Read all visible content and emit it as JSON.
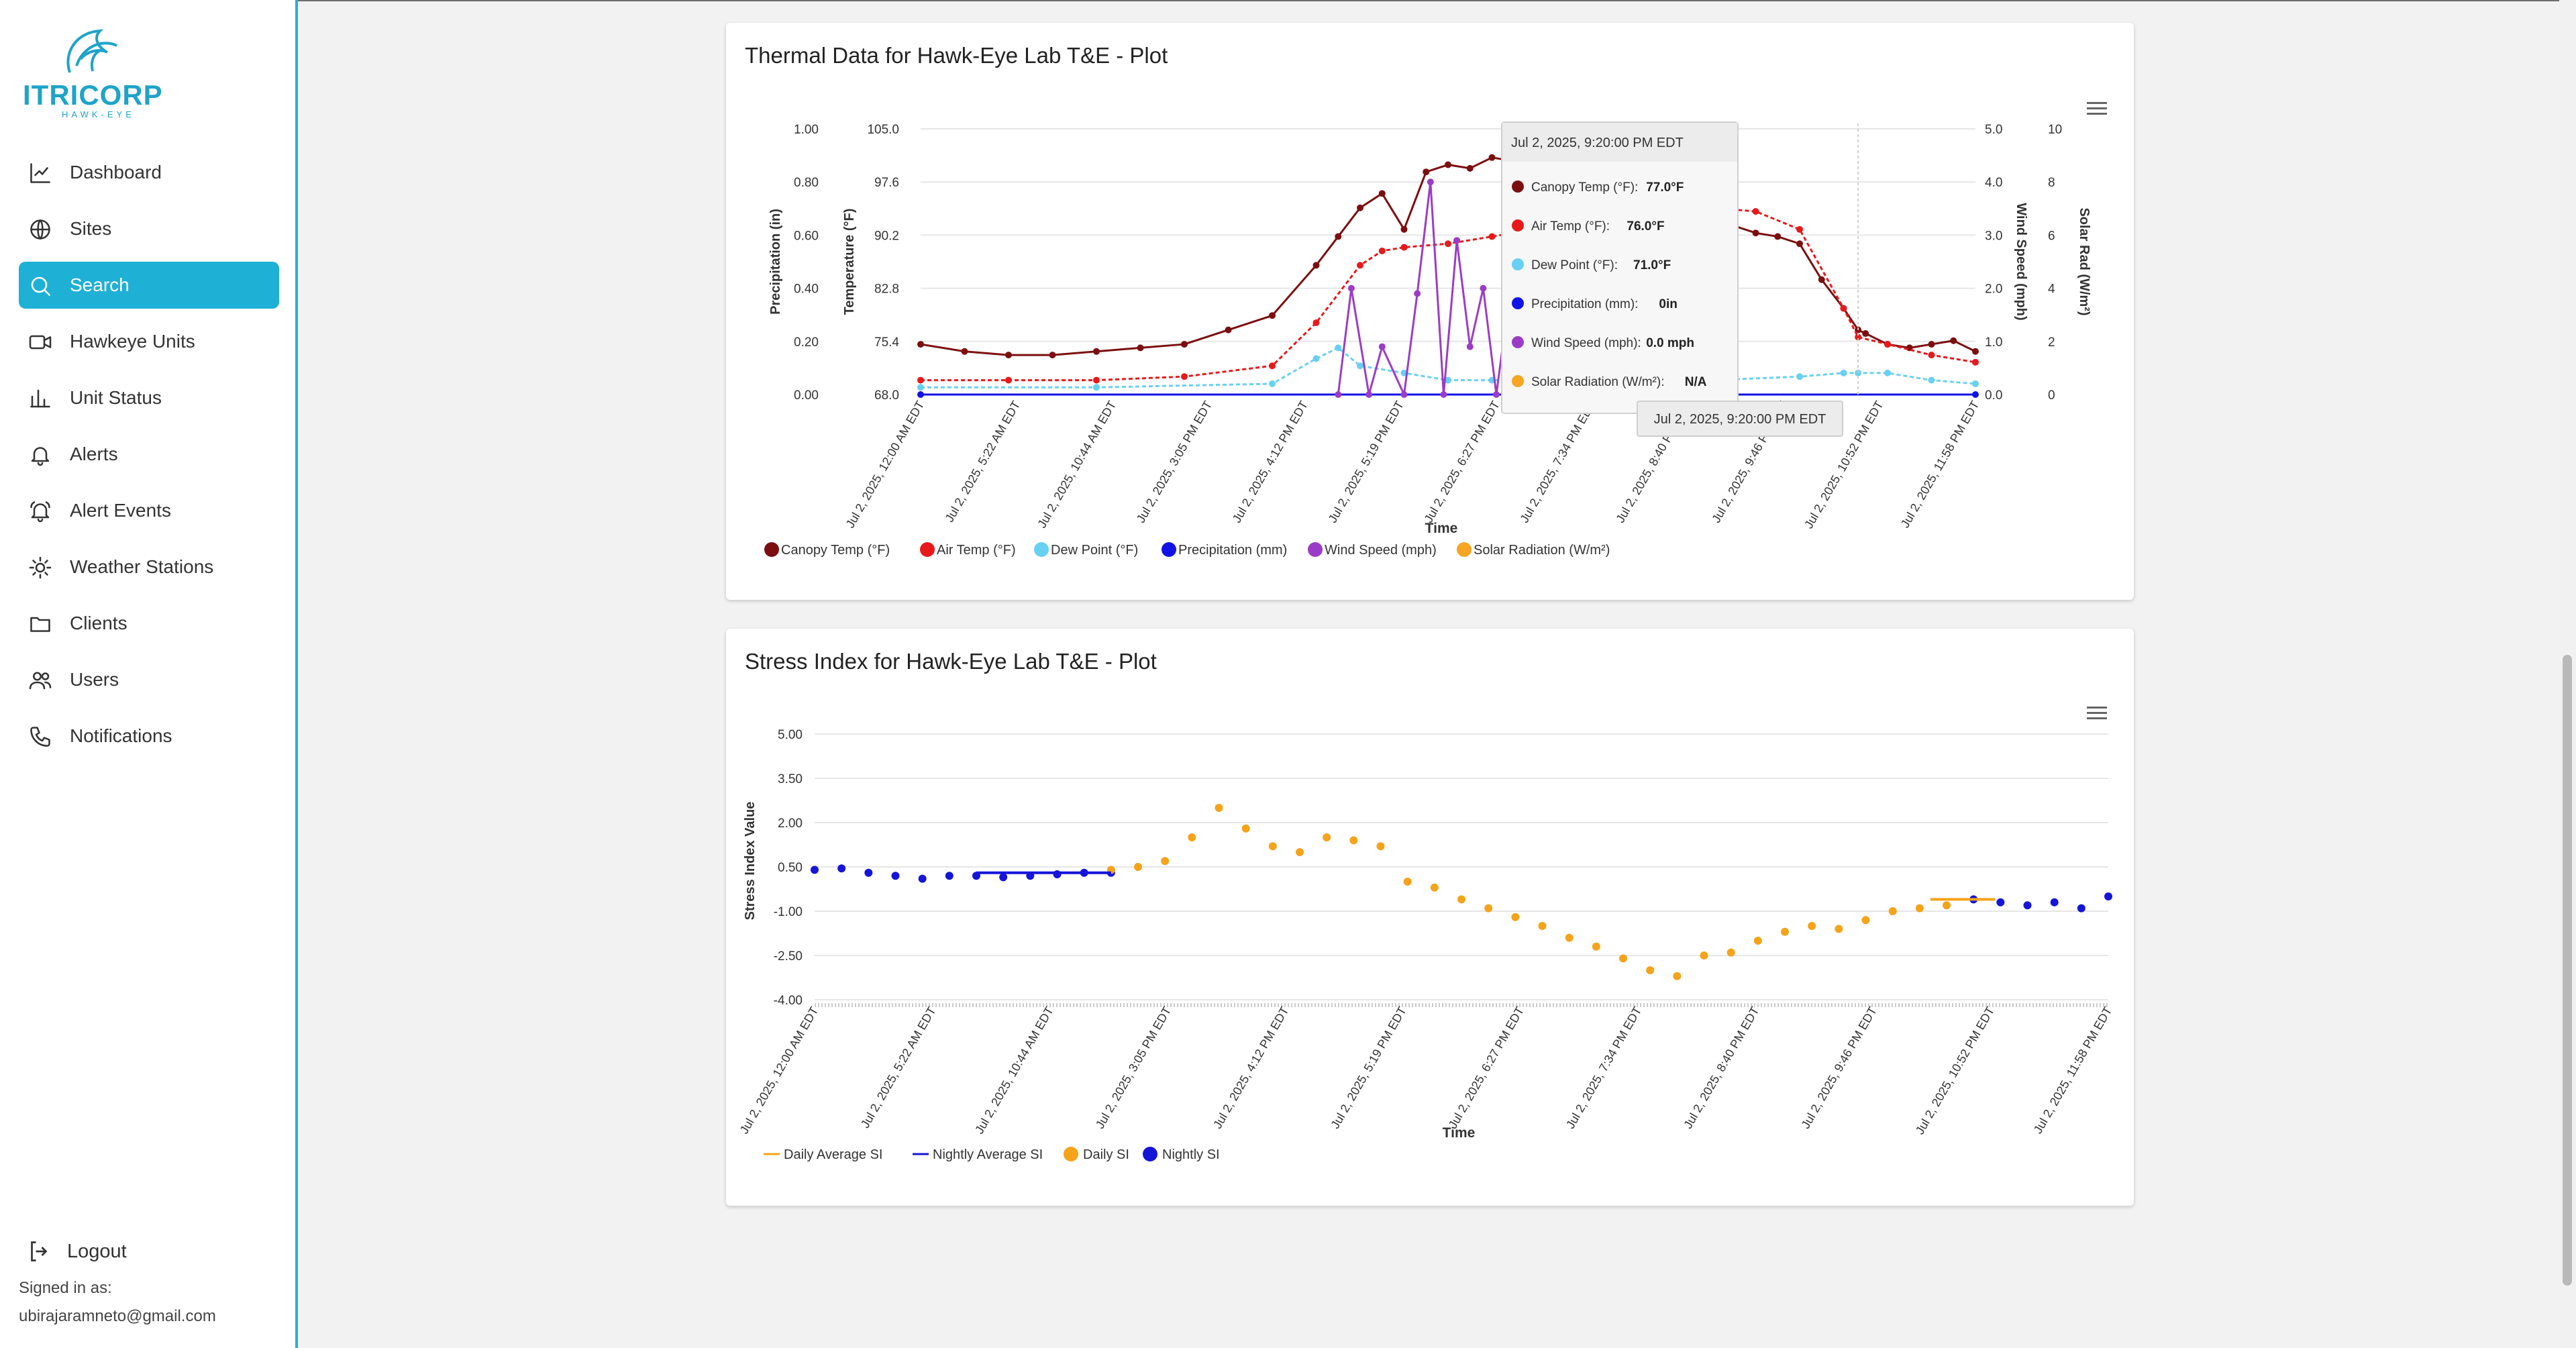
{
  "brand": {
    "name": "ITRICORP",
    "sub": "HAWK-EYE"
  },
  "nav": [
    {
      "label": "Dashboard",
      "icon": "chart-line-icon",
      "active": false
    },
    {
      "label": "Sites",
      "icon": "globe-icon",
      "active": false
    },
    {
      "label": "Search",
      "icon": "search-icon",
      "active": true
    },
    {
      "label": "Hawkeye Units",
      "icon": "video-camera-icon",
      "active": false
    },
    {
      "label": "Unit Status",
      "icon": "bar-chart-icon",
      "active": false
    },
    {
      "label": "Alerts",
      "icon": "bell-icon",
      "active": false
    },
    {
      "label": "Alert Events",
      "icon": "bell-ring-icon",
      "active": false
    },
    {
      "label": "Weather Stations",
      "icon": "sun-icon",
      "active": false
    },
    {
      "label": "Clients",
      "icon": "folder-icon",
      "active": false
    },
    {
      "label": "Users",
      "icon": "users-icon",
      "active": false
    },
    {
      "label": "Notifications",
      "icon": "phone-icon",
      "active": false
    }
  ],
  "footer": {
    "logout": "Logout",
    "signed_in": "Signed in as:",
    "email": "ubirajaramneto@gmail.com"
  },
  "colors": {
    "accent": "#1fb0d6",
    "canopy": "#7b0f10",
    "air": "#e8191b",
    "dew": "#68d0f2",
    "precip": "#1212e6",
    "wind": "#9b3cc7",
    "solar": "#f6a623",
    "daily": "#f5a31a",
    "nightly": "#1515d8"
  },
  "thermal": {
    "title": "Thermal Data for Hawk-Eye Lab T&E - Plot",
    "x_label": "Time",
    "y_precip_label": "Precipitation (in)",
    "y_temp_label": "Temperature (°F)",
    "y_wind_label": "Wind Speed (mph)",
    "y_solar_label": "Solar Rad (W/m²)",
    "y_precip_ticks": [
      "1.00",
      "0.80",
      "0.60",
      "0.40",
      "0.20",
      "0.00"
    ],
    "y_temp_ticks": [
      "105.0",
      "97.6",
      "90.2",
      "82.8",
      "75.4",
      "68.0"
    ],
    "y_wind_ticks": [
      "5.0",
      "4.0",
      "3.0",
      "2.0",
      "1.0",
      "0.0"
    ],
    "y_solar_ticks": [
      "10",
      "8",
      "6",
      "4",
      "2",
      "0"
    ],
    "x_ticks": [
      "Jul 2, 2025, 12:00 AM EDT",
      "Jul 2, 2025, 5:22 AM EDT",
      "Jul 2, 2025, 10:44 AM EDT",
      "Jul 2, 2025, 3:05 PM EDT",
      "Jul 2, 2025, 4:12 PM EDT",
      "Jul 2, 2025, 5:19 PM EDT",
      "Jul 2, 2025, 6:27 PM EDT",
      "Jul 2, 2025, 7:34 PM EDT",
      "Jul 2, 2025, 8:40 PM EDT",
      "Jul 2, 2025, 9:46 PM EDT",
      "Jul 2, 2025, 10:52 PM EDT",
      "Jul 2, 2025, 11:58 PM EDT"
    ],
    "legend": [
      "Canopy Temp (°F)",
      "Air Temp (°F)",
      "Dew Point (°F)",
      "Precipitation (mm)",
      "Wind Speed (mph)",
      "Solar Radiation (W/m²)"
    ],
    "tooltip": {
      "header": "Jul 2, 2025, 9:20:00 PM EDT",
      "rows": [
        {
          "label": "Canopy Temp (°F):",
          "value": "77.0°F"
        },
        {
          "label": "Air Temp (°F):",
          "value": "76.0°F"
        },
        {
          "label": "Dew Point (°F):",
          "value": "71.0°F"
        },
        {
          "label": "Precipitation (mm):",
          "value": "0in"
        },
        {
          "label": "Wind Speed (mph):",
          "value": "0.0 mph"
        },
        {
          "label": "Solar Radiation (W/m²):",
          "value": "N/A"
        }
      ],
      "x_readout": "Jul 2, 2025, 9:20:00 PM EDT"
    }
  },
  "stress": {
    "title": "Stress Index for Hawk-Eye Lab T&E - Plot",
    "x_label": "Time",
    "y_label": "Stress Index Value",
    "y_ticks": [
      "5.00",
      "3.50",
      "2.00",
      "0.50",
      "-1.00",
      "-2.50",
      "-4.00"
    ],
    "x_ticks": [
      "Jul 2, 2025, 12:00 AM EDT",
      "Jul 2, 2025, 5:22 AM EDT",
      "Jul 2, 2025, 10:44 AM EDT",
      "Jul 2, 2025, 3:05 PM EDT",
      "Jul 2, 2025, 4:12 PM EDT",
      "Jul 2, 2025, 5:19 PM EDT",
      "Jul 2, 2025, 6:27 PM EDT",
      "Jul 2, 2025, 7:34 PM EDT",
      "Jul 2, 2025, 8:40 PM EDT",
      "Jul 2, 2025, 9:46 PM EDT",
      "Jul 2, 2025, 10:52 PM EDT",
      "Jul 2, 2025, 11:58 PM EDT"
    ],
    "legend": [
      "Daily Average SI",
      "Nightly Average SI",
      "Daily SI",
      "Nightly SI"
    ]
  },
  "chart_data": [
    {
      "type": "line",
      "title": "Thermal Data for Hawk-Eye Lab T&E - Plot",
      "xlabel": "Time",
      "x_unit": "hours since Jul 2, 2025, 12:00 AM EDT",
      "ylim_temp": [
        68.0,
        105.0
      ],
      "ylim_precip": [
        0.0,
        1.0
      ],
      "ylim_wind": [
        0.0,
        5.0
      ],
      "ylim_solar": [
        0,
        10
      ],
      "series": [
        {
          "name": "Canopy Temp (°F)",
          "axis": "temp",
          "x": [
            0,
            1,
            2,
            3,
            4,
            5,
            6,
            7,
            8,
            9,
            9.5,
            10,
            10.5,
            11,
            11.5,
            12,
            12.5,
            13,
            13.5,
            14,
            14.5,
            15,
            15.5,
            16,
            16.5,
            17,
            17.5,
            18,
            18.5,
            19,
            19.5,
            20,
            20.5,
            21,
            21.33,
            21.5,
            22,
            22.5,
            23,
            23.5,
            24
          ],
          "values": [
            75.0,
            74.0,
            73.5,
            73.5,
            74.0,
            74.5,
            75.0,
            77.0,
            79.0,
            86.0,
            90.0,
            94.0,
            96.0,
            91.0,
            99.0,
            100.0,
            99.5,
            101.0,
            100.5,
            98.0,
            96.5,
            97.0,
            95.5,
            95.0,
            95.0,
            94.5,
            91.0,
            92.5,
            91.5,
            90.5,
            90.0,
            89.0,
            84.0,
            80.0,
            77.0,
            76.5,
            75.0,
            74.5,
            75.0,
            75.5,
            74.0
          ]
        },
        {
          "name": "Air Temp (°F)",
          "axis": "temp",
          "x": [
            0,
            2,
            4,
            6,
            8,
            9,
            10,
            10.5,
            11,
            12,
            13,
            14,
            15,
            16,
            17,
            18,
            19,
            20,
            21,
            21.33,
            22,
            23,
            24
          ],
          "values": [
            70.0,
            70.0,
            70.0,
            70.5,
            72.0,
            78.0,
            86.0,
            88.0,
            88.5,
            89.0,
            90.0,
            91.0,
            92.5,
            93.5,
            94.0,
            94.0,
            93.5,
            91.0,
            80.0,
            76.0,
            75.0,
            73.5,
            72.5
          ]
        },
        {
          "name": "Dew Point (°F)",
          "axis": "temp",
          "x": [
            0,
            4,
            8,
            9,
            9.5,
            10,
            11,
            12,
            13,
            14,
            16,
            18,
            20,
            21,
            21.33,
            22,
            23,
            24
          ],
          "values": [
            69.0,
            69.0,
            69.5,
            73.0,
            74.5,
            72.0,
            71.0,
            70.0,
            70.0,
            70.0,
            70.0,
            70.0,
            70.5,
            71.0,
            71.0,
            71.0,
            70.0,
            69.5
          ]
        },
        {
          "name": "Precipitation (mm)",
          "axis": "precip",
          "x": [
            0,
            24
          ],
          "values": [
            0.0,
            0.0
          ]
        },
        {
          "name": "Wind Speed (mph)",
          "axis": "wind",
          "x": [
            9.5,
            9.8,
            10.2,
            10.5,
            11.0,
            11.3,
            11.6,
            11.9,
            12.2,
            12.5,
            12.8,
            13.1,
            13.4,
            13.7,
            14.0,
            14.3,
            14.6,
            14.9,
            15.2,
            15.5,
            15.8,
            16.1,
            16.4,
            16.7,
            17.0,
            17.3,
            17.6,
            17.9,
            18.2
          ],
          "values": [
            0.0,
            2.0,
            0.0,
            0.9,
            0.0,
            1.9,
            4.0,
            0.0,
            2.9,
            0.9,
            2.0,
            0.0,
            1.9,
            0.9,
            2.0,
            0.0,
            1.9,
            0.0,
            0.9,
            0.0,
            2.0,
            0.0,
            0.9,
            0.0,
            0.9,
            0.0,
            0.9,
            0.0,
            0.0
          ]
        },
        {
          "name": "Solar Radiation (W/m²)",
          "axis": "solar",
          "x": [],
          "values": []
        }
      ]
    },
    {
      "type": "scatter",
      "title": "Stress Index for Hawk-Eye Lab T&E - Plot",
      "xlabel": "Time",
      "ylabel": "Stress Index Value",
      "x_unit": "hours since Jul 2, 2025, 12:00 AM EDT",
      "ylim": [
        -4.0,
        5.0
      ],
      "series": [
        {
          "name": "Nightly SI",
          "x": [
            0,
            0.5,
            1,
            1.5,
            2,
            2.5,
            3,
            3.5,
            4,
            4.5,
            5,
            5.5,
            21.5,
            22,
            22.5,
            23,
            23.5,
            24
          ],
          "values": [
            0.4,
            0.45,
            0.3,
            0.2,
            0.1,
            0.2,
            0.2,
            0.15,
            0.2,
            0.25,
            0.3,
            0.3,
            -0.6,
            -0.7,
            -0.8,
            -0.7,
            -0.9,
            -0.5
          ]
        },
        {
          "name": "Daily SI",
          "x": [
            5.5,
            6,
            6.5,
            7,
            7.5,
            8,
            8.5,
            9,
            9.5,
            10,
            10.5,
            11,
            11.5,
            12,
            12.5,
            13,
            13.5,
            14,
            14.5,
            15,
            15.5,
            16,
            16.5,
            17,
            17.5,
            18,
            18.5,
            19,
            19.5,
            20,
            20.5,
            21
          ],
          "values": [
            0.4,
            0.5,
            0.7,
            1.5,
            2.5,
            1.8,
            1.2,
            1.0,
            1.5,
            1.4,
            1.2,
            0.0,
            -0.2,
            -0.6,
            -0.9,
            -1.2,
            -1.5,
            -1.9,
            -2.2,
            -2.6,
            -3.0,
            -3.2,
            -2.5,
            -2.4,
            -2.0,
            -1.7,
            -1.5,
            -1.6,
            -1.3,
            -1.0,
            -0.9,
            -0.8
          ]
        },
        {
          "name": "Daily Average SI",
          "x": [
            20.7,
            21.9
          ],
          "values": [
            -0.6,
            -0.6
          ]
        },
        {
          "name": "Nightly Average SI",
          "x": [
            3.0,
            5.5
          ],
          "values": [
            0.3,
            0.3
          ]
        }
      ]
    }
  ]
}
